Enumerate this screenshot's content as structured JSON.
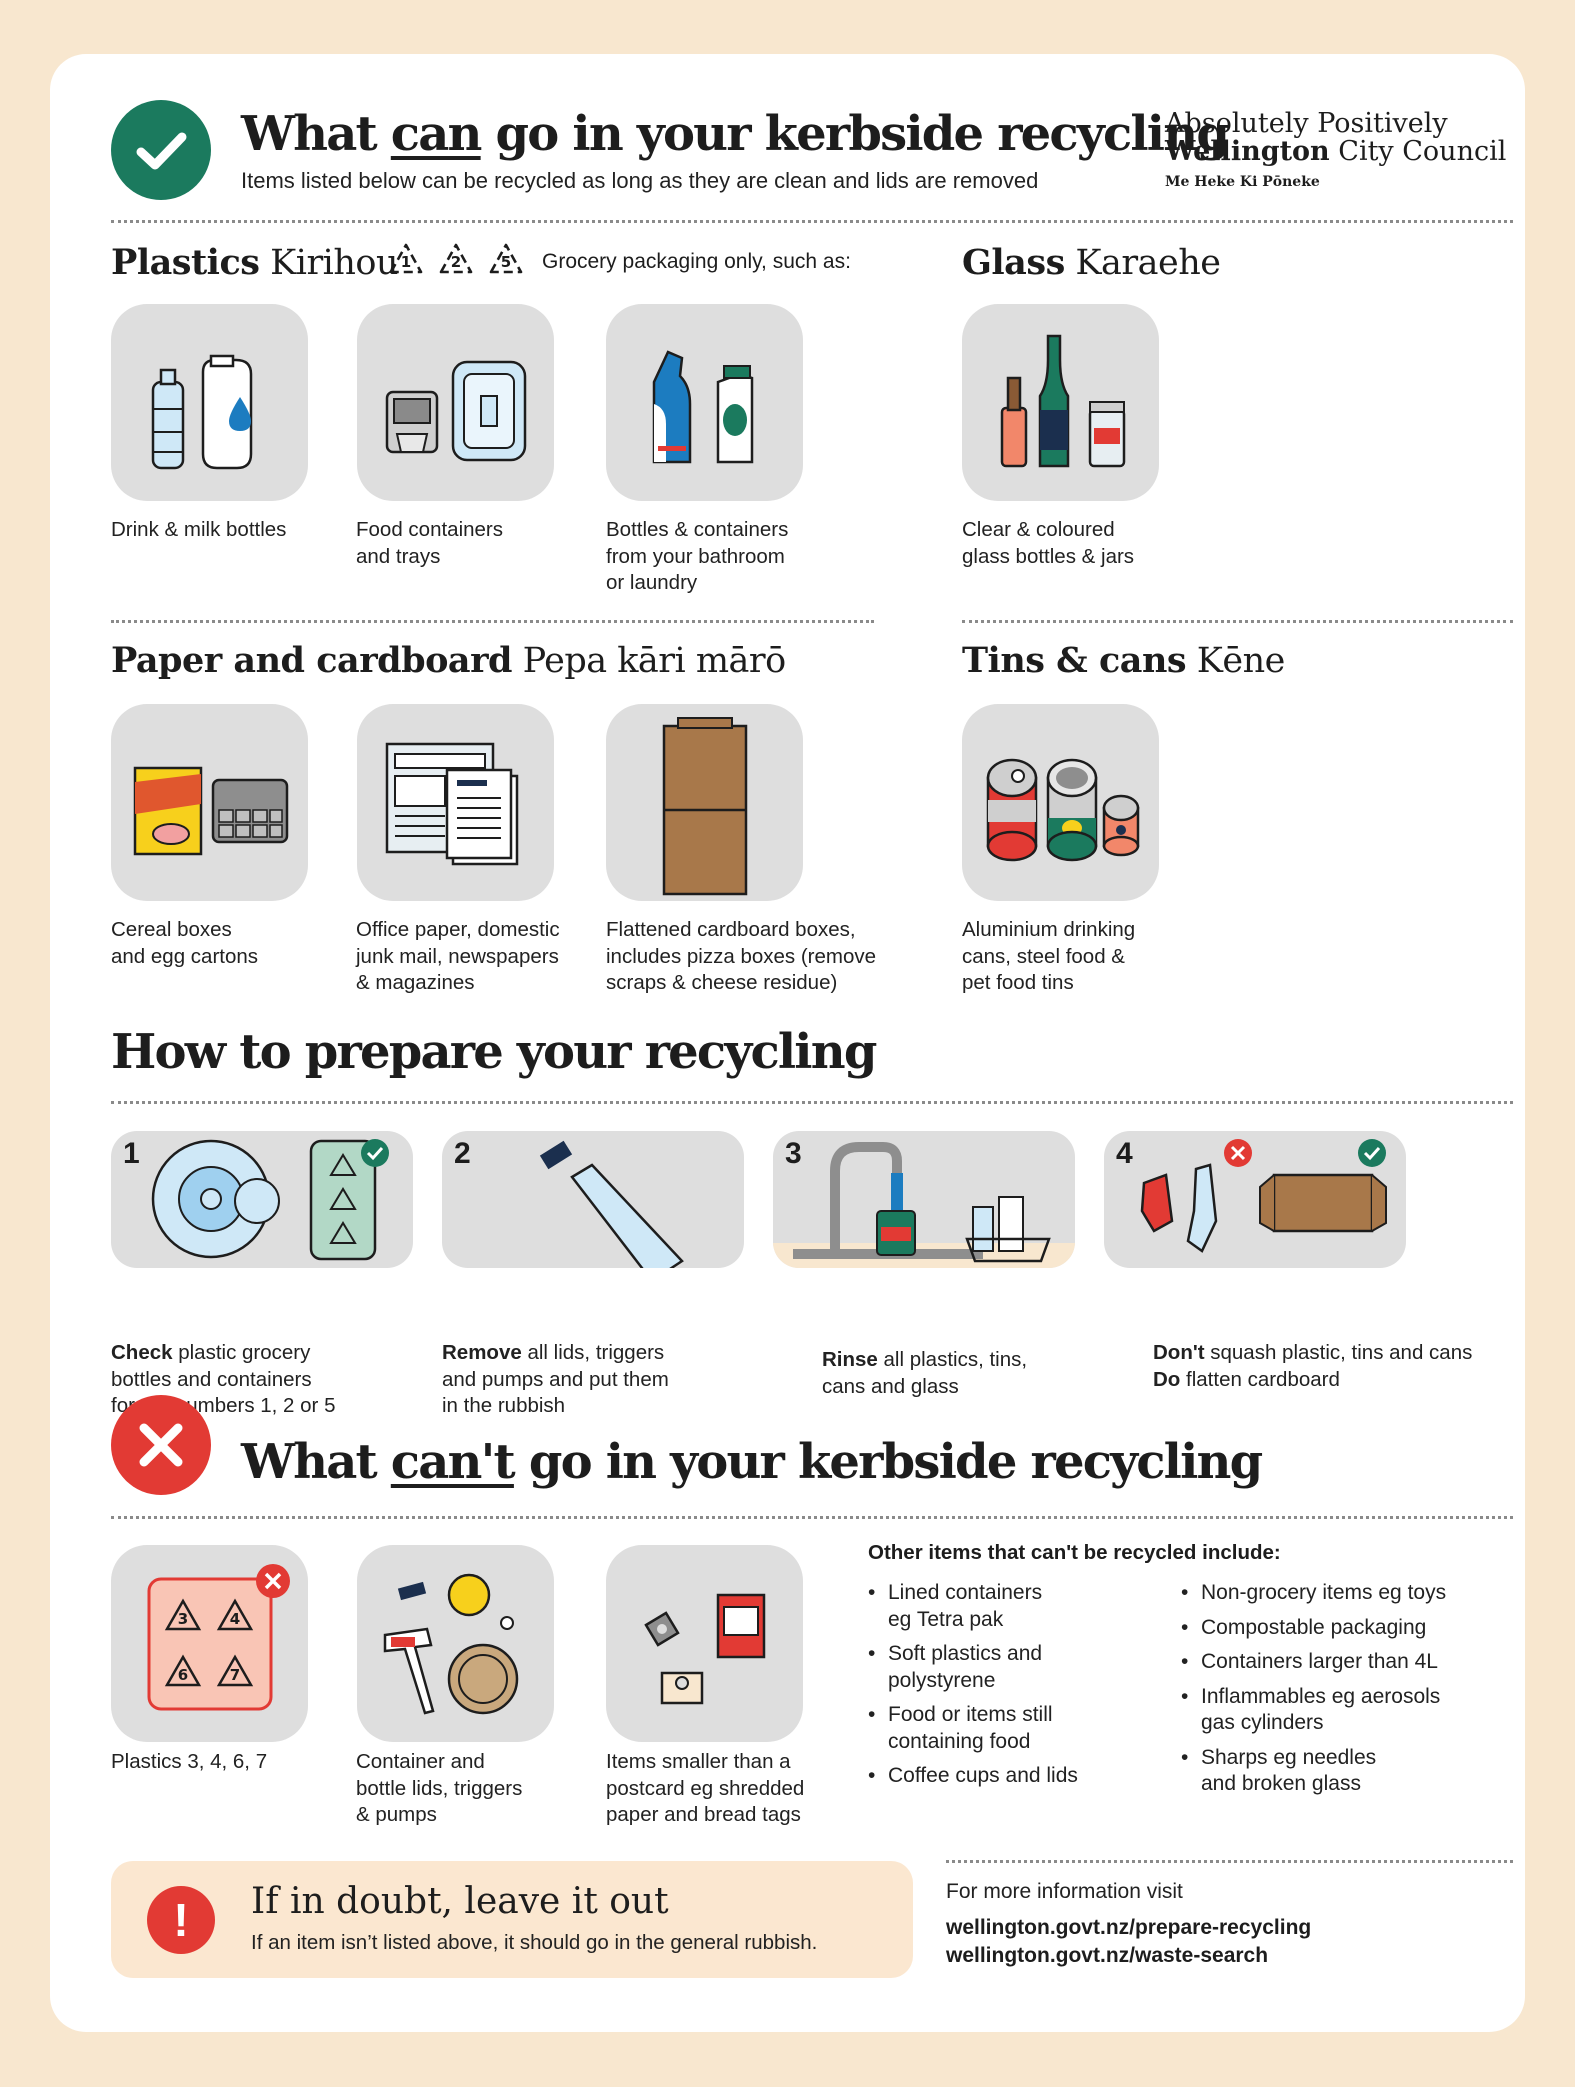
{
  "header": {
    "title_before": "What ",
    "title_emph": "can",
    "title_after": " go in your kerbside recycling",
    "subtitle": "Items listed below can be recycled as long as they are clean and lids are removed"
  },
  "logo": {
    "line1": "Absolutely Positively",
    "line2_bold": "Wellington",
    "line2_rest": " City Council",
    "line3": "Me Heke Ki Pōneke"
  },
  "plastics": {
    "title": "Plastics",
    "title_maori": " Kirihou",
    "codes": [
      "1",
      "2",
      "5"
    ],
    "note": "Grocery packaging only, such as:",
    "items": [
      {
        "caption": "Drink & milk bottles",
        "icon": "bottles-icon"
      },
      {
        "caption": "Food containers\nand trays",
        "icon": "food-containers-icon"
      },
      {
        "caption": "Bottles & containers\nfrom your bathroom\nor laundry",
        "icon": "bathroom-bottles-icon"
      }
    ]
  },
  "glass": {
    "title": "Glass",
    "title_maori": " Karaehe",
    "items": [
      {
        "caption": "Clear & coloured\nglass bottles & jars",
        "icon": "glass-bottles-icon"
      }
    ]
  },
  "paper": {
    "title": "Paper and cardboard",
    "title_maori": " Pepa kāri mārō",
    "items": [
      {
        "caption": "Cereal boxes\nand egg cartons",
        "icon": "cereal-box-icon"
      },
      {
        "caption": "Office paper, domestic\njunk mail, newspapers\n& magazines",
        "icon": "newspaper-icon"
      },
      {
        "caption": "Flattened cardboard boxes,\nincludes pizza boxes (remove\nscraps & cheese residue)",
        "icon": "cardboard-box-icon"
      }
    ]
  },
  "tins": {
    "title": "Tins & cans",
    "title_maori": " Kēne",
    "items": [
      {
        "caption": "Aluminium drinking\ncans, steel food &\npet food tins",
        "icon": "tin-cans-icon"
      }
    ]
  },
  "prepare": {
    "title": "How to prepare your recycling",
    "steps": [
      {
        "num": "1",
        "bold": "Check",
        "line1": " plastic grocery",
        "line2": "bottles and containers",
        "line3": "for the numbers 1, 2 or 5"
      },
      {
        "num": "2",
        "bold": "Remove",
        "line1": " all lids, triggers",
        "line2": "and pumps and put them",
        "line3": "in the rubbish"
      },
      {
        "num": "3",
        "bold": "Rinse",
        "line1": " all plastics, tins,",
        "line2": "cans and glass",
        "line3": ""
      },
      {
        "num": "4",
        "bold": "Don't",
        "line1": " squash plastic, tins and cans",
        "bold2": "Do",
        "line2": " flatten cardboard"
      }
    ]
  },
  "cant": {
    "title_before": "What ",
    "title_emph": "can't",
    "title_after": " go in your kerbside recycling",
    "items": [
      {
        "caption": "Plastics 3, 4, 6, 7",
        "icon": "plastic-codes-icon",
        "codes": [
          "3",
          "4",
          "6",
          "7"
        ]
      },
      {
        "caption": "Container and\nbottle lids, triggers\n& pumps",
        "icon": "lids-triggers-icon"
      },
      {
        "caption": "Items smaller than a\npostcard eg shredded\npaper and bread tags",
        "icon": "small-items-icon"
      }
    ],
    "other_heading": "Other items that can't be recycled include:",
    "other_left": [
      "Lined containers\neg Tetra pak",
      "Soft plastics and\npolystyrene",
      "Food or items still\ncontaining food",
      "Coffee cups and lids"
    ],
    "other_right": [
      "Non-grocery items eg toys",
      "Compostable packaging",
      "Containers larger than 4L",
      "Inflammables eg aerosols\ngas cylinders",
      "Sharps eg needles\nand broken glass"
    ]
  },
  "doubt": {
    "icon_glyph": "!",
    "title": "If in doubt, leave it out",
    "subtitle": "If an item isn’t listed above, it should go in the general rubbish."
  },
  "more_info": {
    "label": "For more information visit",
    "links": [
      "wellington.govt.nz/prepare-recycling",
      "wellington.govt.nz/waste-search"
    ]
  },
  "colors": {
    "background": "#f8e7cf",
    "card": "#ffffff",
    "tile": "#dedede",
    "check_green": "#1b7a5e",
    "cross_red": "#e23a34",
    "doubt_box": "#fbe7d0"
  }
}
